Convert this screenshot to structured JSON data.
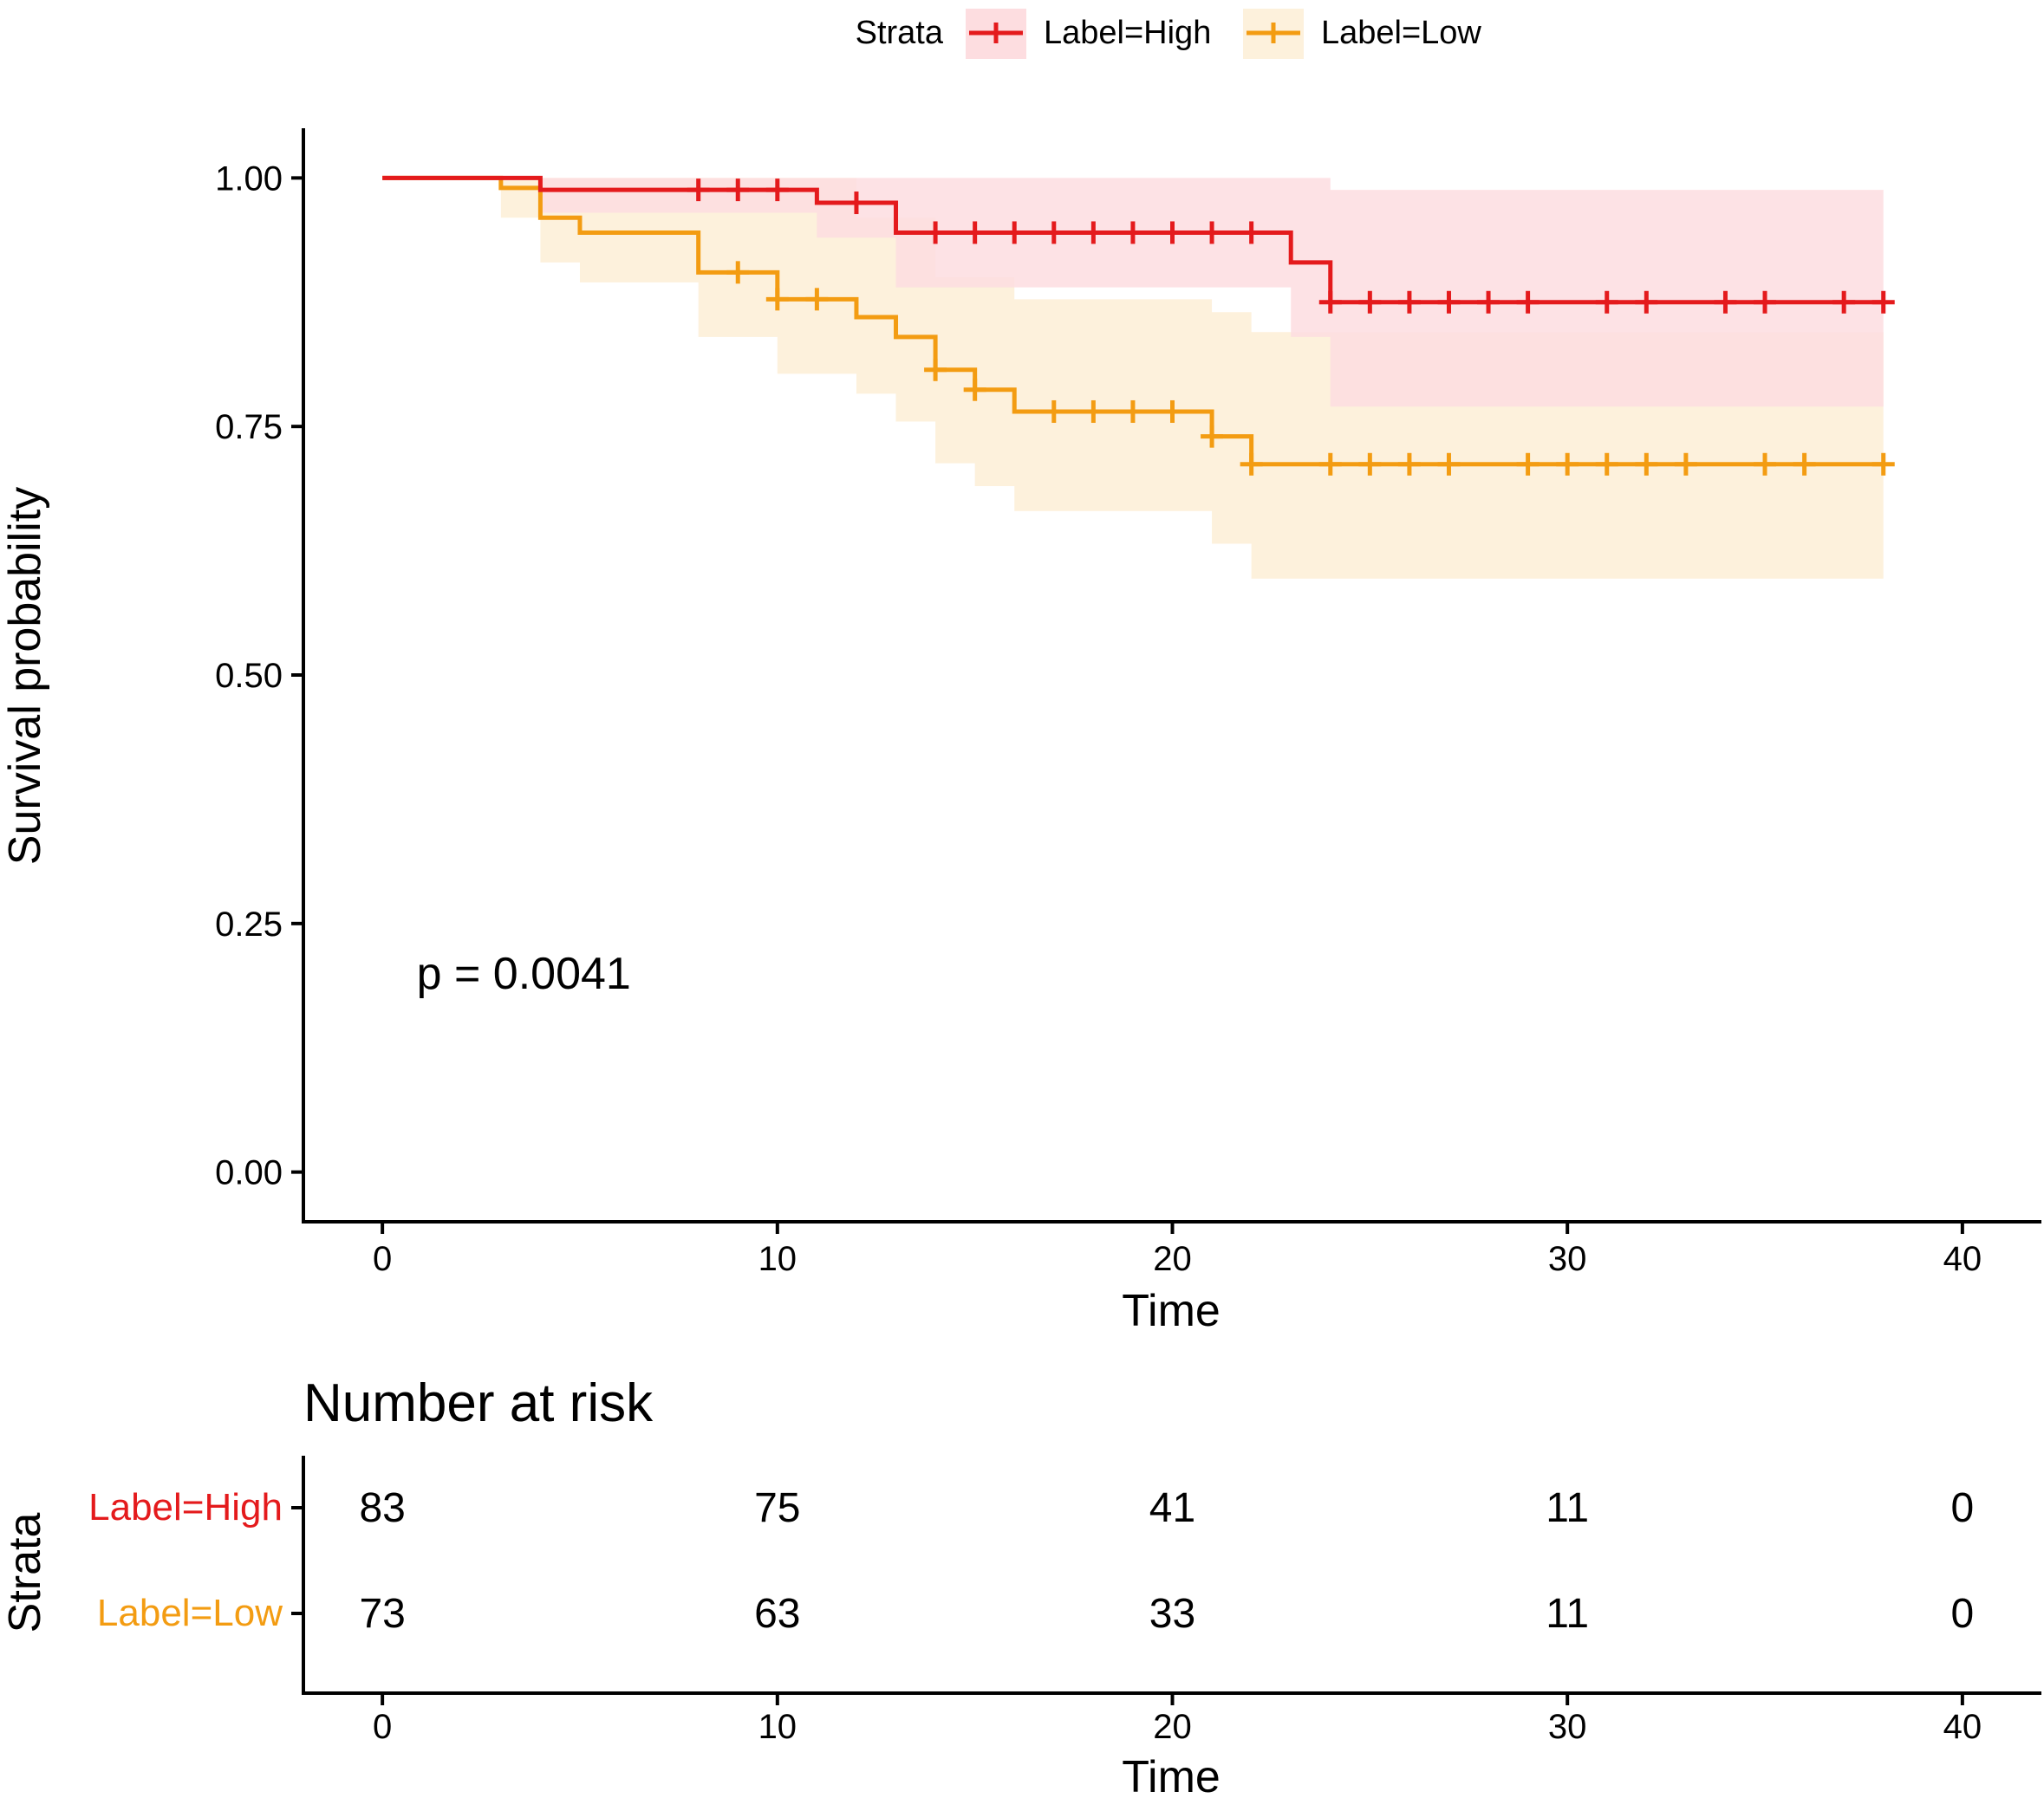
{
  "chart_data": [
    {
      "type": "line",
      "subtype": "kaplan-meier",
      "title": "",
      "xlabel": "Time",
      "ylabel": "Survival probability",
      "xlim": [
        -2,
        42
      ],
      "ylim": [
        -0.05,
        1.05
      ],
      "xticks": [
        0,
        10,
        20,
        30,
        40
      ],
      "yticks": [
        0.0,
        0.25,
        0.5,
        0.75,
        1.0
      ],
      "xtick_labels": [
        "0",
        "10",
        "20",
        "30",
        "40"
      ],
      "ytick_labels": [
        "0.00",
        "0.25",
        "0.50",
        "0.75",
        "1.00"
      ],
      "grid": false,
      "annotation": "p = 0.0041",
      "annotation_pos": [
        3.5,
        0.2
      ],
      "legend": {
        "title": "Strata",
        "position": "top",
        "entries": [
          "Label=High",
          "Label=Low"
        ]
      },
      "series": [
        {
          "name": "Label=High",
          "color": "#e41a1c",
          "ci_fill": "#fddde0",
          "steps": [
            [
              0,
              1.0
            ],
            [
              4,
              0.988
            ],
            [
              11,
              0.975
            ],
            [
              13,
              0.945
            ],
            [
              23,
              0.915
            ],
            [
              24,
              0.875
            ],
            [
              38,
              0.875
            ]
          ],
          "ci_lower": [
            [
              0,
              1.0
            ],
            [
              4,
              0.965
            ],
            [
              11,
              0.94
            ],
            [
              13,
              0.89
            ],
            [
              23,
              0.84
            ],
            [
              24,
              0.77
            ],
            [
              38,
              0.77
            ]
          ],
          "ci_upper": [
            [
              0,
              1.0
            ],
            [
              4,
              1.0
            ],
            [
              24,
              0.988
            ],
            [
              38,
              0.988
            ]
          ],
          "censor_times": [
            8,
            9,
            10,
            12,
            14,
            15,
            16,
            17,
            18,
            19,
            20,
            21,
            22,
            24,
            25,
            26,
            27,
            28,
            29,
            31,
            32,
            34,
            35,
            37,
            38
          ]
        },
        {
          "name": "Label=Low",
          "color": "#f39c12",
          "ci_fill": "#fdf1dc",
          "steps": [
            [
              0,
              1.0
            ],
            [
              3,
              0.99
            ],
            [
              4,
              0.96
            ],
            [
              5,
              0.945
            ],
            [
              8,
              0.905
            ],
            [
              10,
              0.878
            ],
            [
              12,
              0.86
            ],
            [
              13,
              0.84
            ],
            [
              14,
              0.807
            ],
            [
              15,
              0.787
            ],
            [
              16,
              0.765
            ],
            [
              21,
              0.74
            ],
            [
              22,
              0.712
            ],
            [
              38,
              0.712
            ]
          ],
          "ci_lower": [
            [
              0,
              1.0
            ],
            [
              3,
              0.96
            ],
            [
              4,
              0.915
            ],
            [
              5,
              0.895
            ],
            [
              8,
              0.84
            ],
            [
              10,
              0.803
            ],
            [
              12,
              0.783
            ],
            [
              13,
              0.755
            ],
            [
              14,
              0.713
            ],
            [
              15,
              0.69
            ],
            [
              16,
              0.665
            ],
            [
              21,
              0.632
            ],
            [
              22,
              0.597
            ],
            [
              38,
              0.597
            ]
          ],
          "ci_upper": [
            [
              0,
              1.0
            ],
            [
              11,
              1.0
            ],
            [
              12,
              0.96
            ],
            [
              14,
              0.9
            ],
            [
              16,
              0.878
            ],
            [
              21,
              0.865
            ],
            [
              22,
              0.845
            ],
            [
              24,
              0.845
            ],
            [
              38,
              0.845
            ]
          ],
          "censor_times": [
            9,
            10,
            11,
            14,
            15,
            17,
            18,
            19,
            20,
            21,
            22,
            24,
            25,
            26,
            27,
            29,
            30,
            31,
            32,
            33,
            35,
            36,
            38
          ]
        }
      ]
    },
    {
      "type": "table",
      "title": "Number at risk",
      "xlabel": "Time",
      "ylabel": "Strata",
      "xlim": [
        -2,
        42
      ],
      "xticks": [
        0,
        10,
        20,
        30,
        40
      ],
      "xtick_labels": [
        "0",
        "10",
        "20",
        "30",
        "40"
      ],
      "rows": [
        {
          "name": "Label=High",
          "color": "#e41a1c",
          "values": [
            "83",
            "75",
            "41",
            "11",
            "0"
          ]
        },
        {
          "name": "Label=Low",
          "color": "#f39c12",
          "values": [
            "73",
            "63",
            "33",
            "11",
            "0"
          ]
        }
      ]
    }
  ]
}
